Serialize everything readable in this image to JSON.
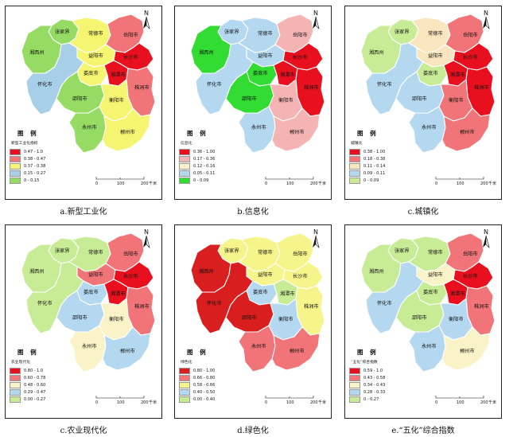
{
  "cities": [
    {
      "id": "zhangjiajie",
      "name": "张家界"
    },
    {
      "id": "changde",
      "name": "常德市"
    },
    {
      "id": "yueyang",
      "name": "岳阳市"
    },
    {
      "id": "xiangxi",
      "name": "湘西州"
    },
    {
      "id": "yiyang",
      "name": "益阳市"
    },
    {
      "id": "changsha",
      "name": "长沙市"
    },
    {
      "id": "loudi",
      "name": "娄底市"
    },
    {
      "id": "xiangtan",
      "name": "湘潭市"
    },
    {
      "id": "huaihua",
      "name": "怀化市"
    },
    {
      "id": "zhuzhou",
      "name": "株洲市"
    },
    {
      "id": "shaoyang",
      "name": "邵阳市"
    },
    {
      "id": "hengyang",
      "name": "衡阳市"
    },
    {
      "id": "yongzhou",
      "name": "永州市"
    },
    {
      "id": "chenzhou",
      "name": "郴州市"
    }
  ],
  "common": {
    "legend_title": "图 例",
    "north_label": "N",
    "scale_ticks": [
      "0",
      "100",
      "200"
    ],
    "scale_unit": "千米"
  },
  "panels": [
    {
      "caption": "a.新型工业化",
      "legend_subtitle": "新型工业化指标",
      "classes": [
        {
          "label": "0.47 - 1.0",
          "color": "#e8101e"
        },
        {
          "label": "0.38 - 0.47",
          "color": "#f07478"
        },
        {
          "label": "0.37 - 0.38",
          "color": "#f5f572"
        },
        {
          "label": "0.15 - 0.27",
          "color": "#a8cfe8"
        },
        {
          "label": "0 - 0.15",
          "color": "#96dc64"
        }
      ],
      "region_class": {
        "zhangjiajie": 4,
        "changde": 2,
        "yueyang": 1,
        "xiangxi": 4,
        "yiyang": 2,
        "changsha": 0,
        "loudi": 2,
        "xiangtan": 0,
        "huaihua": 3,
        "zhuzhou": 1,
        "shaoyang": 4,
        "hengyang": 2,
        "yongzhou": 4,
        "chenzhou": 2
      }
    },
    {
      "caption": "b.信息化",
      "legend_subtitle": "信息化",
      "classes": [
        {
          "label": "0.36 - 1.00",
          "color": "#e8101e"
        },
        {
          "label": "0.17 - 0.36",
          "color": "#f4b4b4"
        },
        {
          "label": "0.12 - 0.16",
          "color": "#fcf0c8"
        },
        {
          "label": "0.05 - 0.11",
          "color": "#b4d8f0"
        },
        {
          "label": "0 - 0.09",
          "color": "#32dc32"
        }
      ],
      "region_class": {
        "zhangjiajie": 3,
        "changde": 3,
        "yueyang": 1,
        "xiangxi": 4,
        "yiyang": 3,
        "changsha": 0,
        "loudi": 4,
        "xiangtan": 0,
        "huaihua": 3,
        "zhuzhou": 0,
        "shaoyang": 4,
        "hengyang": 1,
        "yongzhou": 3,
        "chenzhou": 1
      }
    },
    {
      "caption": "c.城镇化",
      "legend_subtitle": "城镇化",
      "classes": [
        {
          "label": "0.38 - 1.00",
          "color": "#e8101e"
        },
        {
          "label": "0.18 - 0.38",
          "color": "#f07478"
        },
        {
          "label": "0.11 - 0.14",
          "color": "#fae6be"
        },
        {
          "label": "0.09 - 0.11",
          "color": "#b4d8f0"
        },
        {
          "label": "0 - 0.09",
          "color": "#c8eb96"
        }
      ],
      "region_class": {
        "zhangjiajie": 4,
        "changde": 2,
        "yueyang": 1,
        "xiangxi": 4,
        "yiyang": 2,
        "changsha": 0,
        "loudi": 4,
        "xiangtan": 0,
        "huaihua": 3,
        "zhuzhou": 0,
        "shaoyang": 3,
        "hengyang": 1,
        "yongzhou": 3,
        "chenzhou": 1
      }
    },
    {
      "caption": "c.农业现代化",
      "legend_subtitle": "农业现代化",
      "classes": [
        {
          "label": "0.80 - 1.0",
          "color": "#e8101e"
        },
        {
          "label": "0.60 - 0.78",
          "color": "#f07478"
        },
        {
          "label": "0.48 - 0.60",
          "color": "#fbf3c8"
        },
        {
          "label": "0.29 - 0.47",
          "color": "#b4d8f0"
        },
        {
          "label": "0.00 - 0.27",
          "color": "#c8eb96"
        }
      ],
      "region_class": {
        "zhangjiajie": 4,
        "changde": 4,
        "yueyang": 1,
        "xiangxi": 4,
        "yiyang": 1,
        "changsha": 0,
        "loudi": 3,
        "xiangtan": 0,
        "huaihua": 4,
        "zhuzhou": 1,
        "shaoyang": 3,
        "hengyang": 2,
        "yongzhou": 2,
        "chenzhou": 3
      }
    },
    {
      "caption": "d.绿色化",
      "legend_subtitle": "绿色化",
      "classes": [
        {
          "label": "0.80 - 1.00",
          "color": "#d81e1e"
        },
        {
          "label": "0.66 - 0.80",
          "color": "#f07478"
        },
        {
          "label": "0.58 - 0.66",
          "color": "#f5f58c"
        },
        {
          "label": "0.40 - 0.50",
          "color": "#b4d8f0"
        },
        {
          "label": "0.00 - 0.40",
          "color": "#c8eb96"
        }
      ],
      "region_class": {
        "zhangjiajie": 2,
        "changde": 2,
        "yueyang": 2,
        "xiangxi": 0,
        "yiyang": 2,
        "changsha": 2,
        "loudi": 3,
        "xiangtan": 4,
        "huaihua": 0,
        "zhuzhou": 2,
        "shaoyang": 0,
        "hengyang": 3,
        "yongzhou": 1,
        "chenzhou": 1
      }
    },
    {
      "caption": "e.“五化”综合指数",
      "legend_subtitle": "“五化”综合指数",
      "classes": [
        {
          "label": "0.59 - 1.0",
          "color": "#e8101e"
        },
        {
          "label": "0.43 - 0.58",
          "color": "#f07478"
        },
        {
          "label": "0.34 - 0.43",
          "color": "#fbf3c8"
        },
        {
          "label": "0.28 - 0.33",
          "color": "#b4d8f0"
        },
        {
          "label": "0 - 0.27",
          "color": "#c8eb96"
        }
      ],
      "region_class": {
        "zhangjiajie": 4,
        "changde": 4,
        "yueyang": 1,
        "xiangxi": 4,
        "yiyang": 2,
        "changsha": 0,
        "loudi": 4,
        "xiangtan": 0,
        "huaihua": 3,
        "zhuzhou": 1,
        "shaoyang": 4,
        "hengyang": 3,
        "yongzhou": 3,
        "chenzhou": 2
      }
    }
  ]
}
